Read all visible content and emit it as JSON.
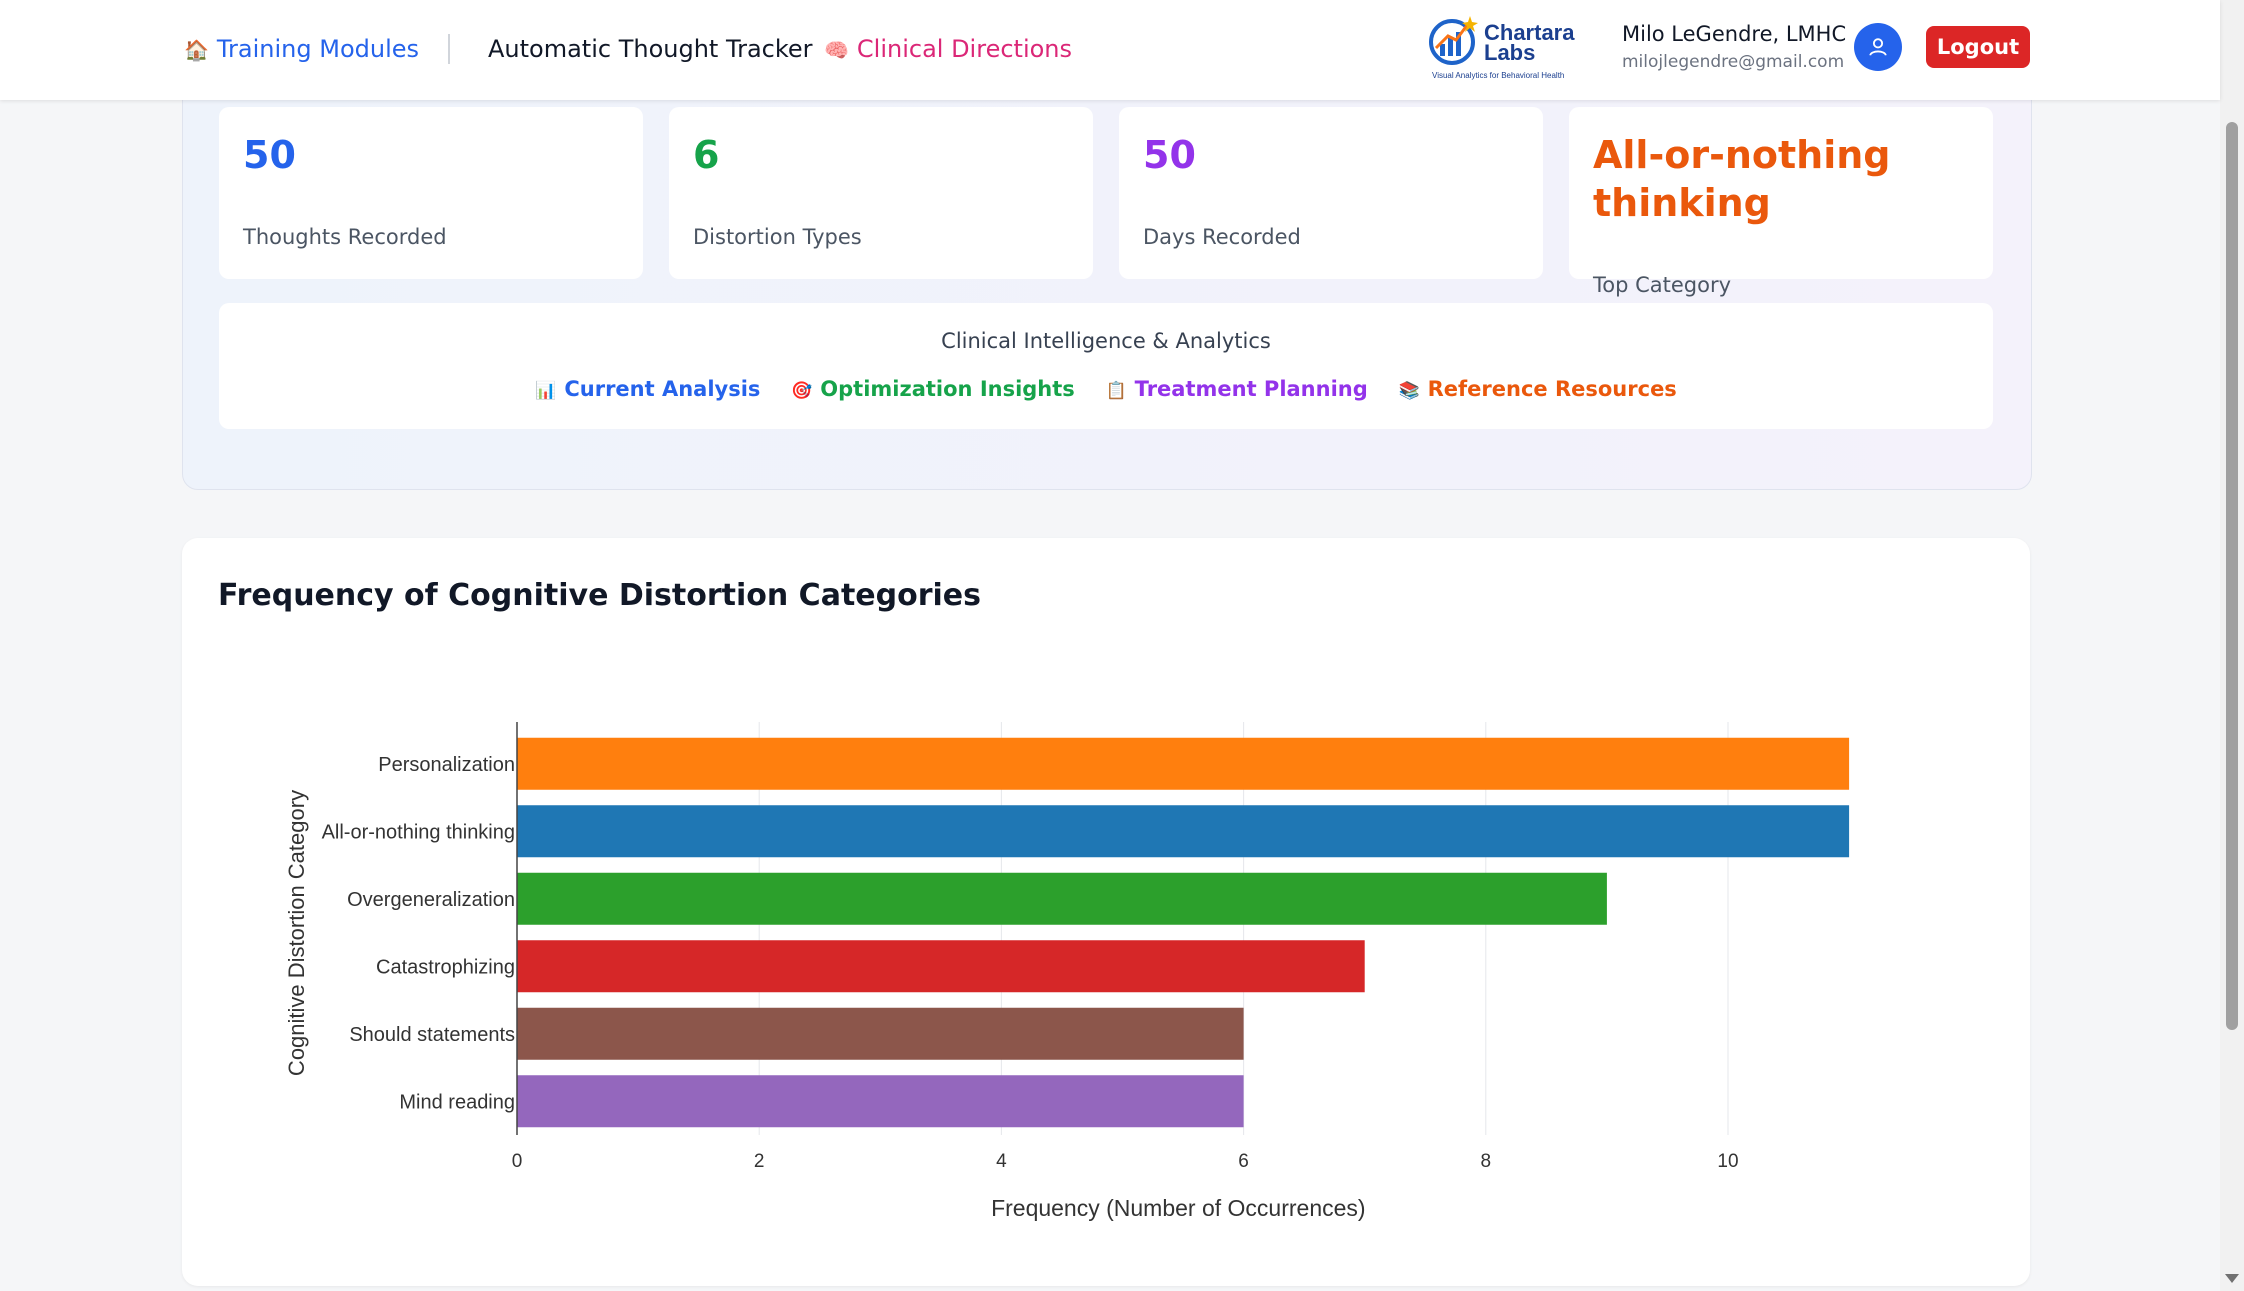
{
  "nav": {
    "training_modules": "Training Modules",
    "training_modules_icon": "house-icon",
    "thought_tracker": "Automatic Thought Tracker",
    "clinical_directions": "Clinical Directions",
    "clinical_directions_icon": "brain-icon"
  },
  "brand": {
    "logo_line1": "Chartara",
    "logo_line2": "Labs",
    "tagline": "Visual Analytics for Behavioral Health"
  },
  "user": {
    "name": "Milo LeGendre, LMHC",
    "email": "milojlegendre@gmail.com",
    "logout_label": "Logout"
  },
  "stats": [
    {
      "value": "50",
      "label": "Thoughts Recorded",
      "color": "#2563eb"
    },
    {
      "value": "6",
      "label": "Distortion Types",
      "color": "#16a34a"
    },
    {
      "value": "50",
      "label": "Days Recorded",
      "color": "#9333ea"
    },
    {
      "value": "All-or-nothing thinking",
      "label": "Top Category",
      "color": "#ea580c"
    }
  ],
  "clinical": {
    "title": "Clinical Intelligence & Analytics",
    "links": [
      {
        "label": "Current Analysis",
        "icon": "bar-chart-icon",
        "color": "#2563eb"
      },
      {
        "label": "Optimization Insights",
        "icon": "target-icon",
        "color": "#16a34a"
      },
      {
        "label": "Treatment Planning",
        "icon": "clipboard-icon",
        "color": "#9333ea"
      },
      {
        "label": "Reference Resources",
        "icon": "books-icon",
        "color": "#ea580c"
      }
    ]
  },
  "chart_title": "Frequency of Cognitive Distortion Categories",
  "chart_data": {
    "type": "bar",
    "orientation": "horizontal",
    "categories": [
      "Personalization",
      "All-or-nothing thinking",
      "Overgeneralization",
      "Catastrophizing",
      "Should statements",
      "Mind reading"
    ],
    "values": [
      11,
      11,
      9,
      7,
      6,
      6
    ],
    "colors": [
      "#ff7f0e",
      "#1f77b4",
      "#2ca02c",
      "#d62728",
      "#8c564b",
      "#9467bd"
    ],
    "xlabel": "Frequency (Number of Occurrences)",
    "ylabel": "Cognitive Distortion Category",
    "xticks": [
      0,
      2,
      4,
      6,
      8,
      10
    ],
    "xlim": [
      0,
      11.5
    ],
    "grid": true
  }
}
